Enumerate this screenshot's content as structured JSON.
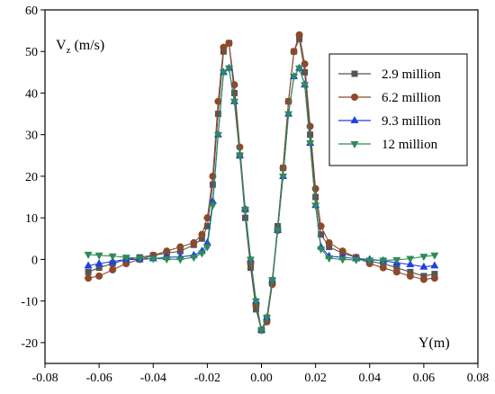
{
  "chart_data": {
    "type": "scatter",
    "ylabel_main": "V",
    "ylabel_sub": "z",
    "ylabel_unit": " (m/s)",
    "xlabel": "Y(m)",
    "xlim": [
      -0.08,
      0.08
    ],
    "ylim": [
      -25,
      60
    ],
    "x_ticks": [
      "-0.08",
      "-0.06",
      "-0.04",
      "-0.02",
      "0.00",
      "0.02",
      "0.04",
      "0.06",
      "0.08"
    ],
    "x_tick_values": [
      -0.08,
      -0.06,
      -0.04,
      -0.02,
      0.0,
      0.02,
      0.04,
      0.06,
      0.08
    ],
    "y_ticks": [
      "-20",
      "-10",
      "0",
      "10",
      "20",
      "30",
      "40",
      "50",
      "60"
    ],
    "y_tick_values": [
      -20,
      -10,
      0,
      10,
      20,
      30,
      40,
      50,
      60
    ],
    "legend_position": "top-right",
    "x": [
      -0.064,
      -0.06,
      -0.055,
      -0.05,
      -0.045,
      -0.04,
      -0.035,
      -0.03,
      -0.025,
      -0.022,
      -0.02,
      -0.018,
      -0.016,
      -0.014,
      -0.012,
      -0.01,
      -0.008,
      -0.006,
      -0.004,
      -0.002,
      0.0,
      0.002,
      0.004,
      0.006,
      0.008,
      0.01,
      0.012,
      0.014,
      0.016,
      0.018,
      0.02,
      0.022,
      0.025,
      0.03,
      0.035,
      0.04,
      0.045,
      0.05,
      0.055,
      0.06,
      0.064
    ],
    "series": [
      {
        "name": "2.9 million",
        "color": "#555555",
        "marker": "square",
        "values": [
          -3,
          -2,
          -1,
          0,
          0.5,
          1,
          1.5,
          2,
          3.5,
          5,
          8,
          18,
          35,
          50,
          52,
          40,
          25,
          10,
          -2,
          -12,
          -17,
          -14,
          -5,
          8,
          22,
          38,
          50,
          53,
          45,
          30,
          15,
          6,
          3,
          1.5,
          0.5,
          -0.5,
          -1,
          -2,
          -3,
          -4,
          -3.5
        ]
      },
      {
        "name": "6.2 million",
        "color": "#8B4A2B",
        "marker": "circle",
        "values": [
          -4.5,
          -4,
          -2.5,
          -1,
          0,
          1,
          2,
          3,
          4,
          6,
          10,
          20,
          38,
          51,
          52,
          42,
          27,
          12,
          -1,
          -11,
          -17,
          -15,
          -6,
          7,
          22,
          38,
          50,
          54,
          47,
          32,
          17,
          8,
          4,
          2,
          0.5,
          -1,
          -2,
          -3,
          -4,
          -4.8,
          -4.5
        ]
      },
      {
        "name": "9.3 million",
        "color": "#2040E0",
        "marker": "triangle-up",
        "values": [
          -1.5,
          -1,
          -0.5,
          0,
          0,
          0.2,
          0.5,
          0.6,
          1,
          2,
          4,
          14,
          30,
          45,
          46,
          38,
          25,
          12,
          0,
          -10,
          -17,
          -14,
          -5,
          7,
          20,
          35,
          44,
          46,
          42,
          28,
          13,
          3,
          0.8,
          0.5,
          0.2,
          0,
          -0.3,
          -0.8,
          -1.2,
          -1.8,
          -1.5
        ]
      },
      {
        "name": "12 million",
        "color": "#2E8B57",
        "marker": "triangle-down",
        "values": [
          1.2,
          1,
          0.8,
          0.5,
          0.3,
          0.2,
          0.1,
          0,
          0.5,
          1.5,
          3,
          13,
          30,
          45,
          46,
          38,
          25,
          12,
          0,
          -10,
          -17,
          -14,
          -5,
          7,
          20,
          35,
          44,
          46,
          42,
          28,
          13,
          2.5,
          0.3,
          0,
          -0.1,
          -0.2,
          -0.2,
          -0.1,
          0.2,
          0.7,
          1
        ]
      }
    ]
  }
}
